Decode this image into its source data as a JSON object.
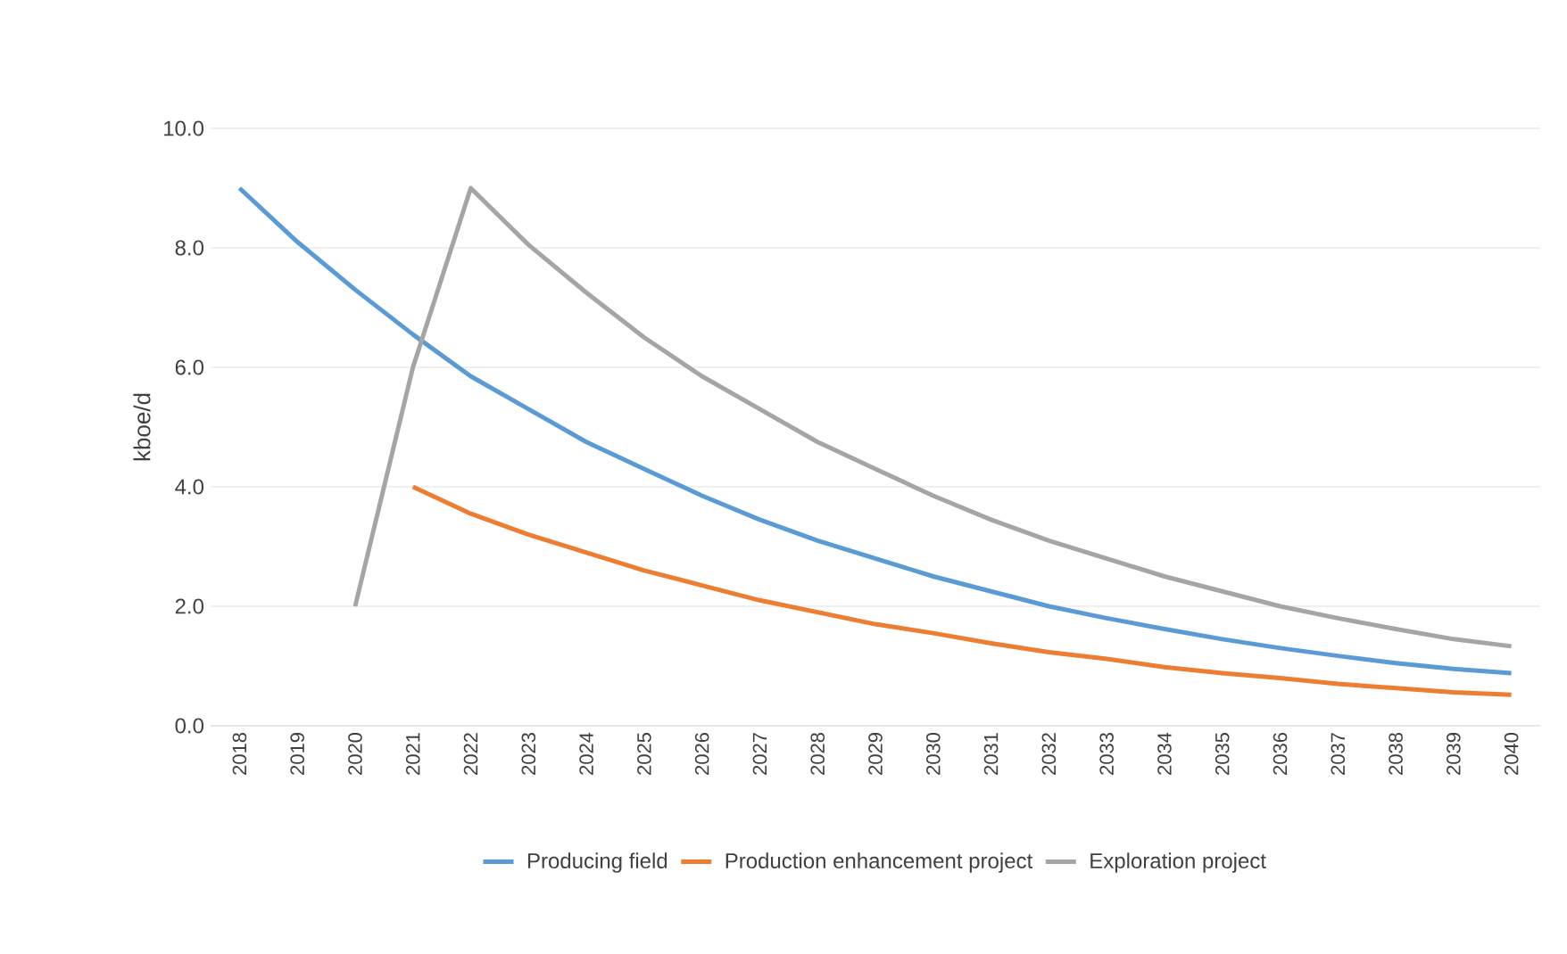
{
  "chart_data": {
    "type": "line",
    "ylabel": "kboe/d",
    "categories": [
      "2018",
      "2019",
      "2020",
      "2021",
      "2022",
      "2023",
      "2024",
      "2025",
      "2026",
      "2027",
      "2028",
      "2029",
      "2030",
      "2031",
      "2032",
      "2033",
      "2034",
      "2035",
      "2036",
      "2037",
      "2038",
      "2039",
      "2040"
    ],
    "series": [
      {
        "name": "Producing field",
        "color": "#5b9bd5",
        "values": [
          9.0,
          8.1,
          7.3,
          6.55,
          5.85,
          5.3,
          4.75,
          4.3,
          3.85,
          3.45,
          3.1,
          2.8,
          2.5,
          2.25,
          2.0,
          1.8,
          1.62,
          1.45,
          1.3,
          1.17,
          1.05,
          0.95,
          0.88
        ]
      },
      {
        "name": "Production enhancement project",
        "color": "#ed7d31",
        "values": [
          null,
          null,
          null,
          4.0,
          3.55,
          3.2,
          2.9,
          2.6,
          2.35,
          2.1,
          1.9,
          1.7,
          1.55,
          1.38,
          1.23,
          1.12,
          0.98,
          0.88,
          0.8,
          0.7,
          0.63,
          0.56,
          0.52
        ]
      },
      {
        "name": "Exploration project",
        "color": "#a5a5a5",
        "values": [
          null,
          null,
          2.0,
          6.0,
          9.0,
          8.05,
          7.25,
          6.5,
          5.85,
          5.3,
          4.75,
          4.3,
          3.85,
          3.45,
          3.1,
          2.8,
          2.5,
          2.25,
          2.0,
          1.8,
          1.62,
          1.45,
          1.33
        ]
      }
    ],
    "ylim": [
      0,
      10
    ],
    "yticks": [
      {
        "value": 0,
        "label": "0.0"
      },
      {
        "value": 2,
        "label": "2.0"
      },
      {
        "value": 4,
        "label": "4.0"
      },
      {
        "value": 6,
        "label": "6.0"
      },
      {
        "value": 8,
        "label": "8.0"
      },
      {
        "value": 10,
        "label": "10.0"
      }
    ],
    "grid": "y",
    "legend": "bottom",
    "marker": "none",
    "line_style": "solid"
  }
}
